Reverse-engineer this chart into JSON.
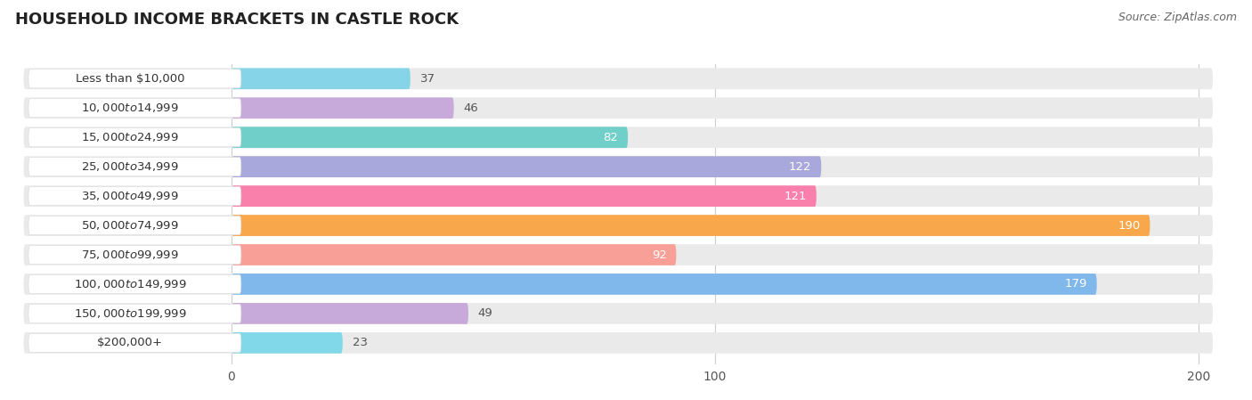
{
  "title": "HOUSEHOLD INCOME BRACKETS IN CASTLE ROCK",
  "source": "Source: ZipAtlas.com",
  "categories": [
    "Less than $10,000",
    "$10,000 to $14,999",
    "$15,000 to $24,999",
    "$25,000 to $34,999",
    "$35,000 to $49,999",
    "$50,000 to $74,999",
    "$75,000 to $99,999",
    "$100,000 to $149,999",
    "$150,000 to $199,999",
    "$200,000+"
  ],
  "values": [
    37,
    46,
    82,
    122,
    121,
    190,
    92,
    179,
    49,
    23
  ],
  "bar_colors": [
    "#85D4E8",
    "#C8AADA",
    "#70CFC8",
    "#A8A8DC",
    "#F880AA",
    "#F8A84A",
    "#F8A098",
    "#80B8EC",
    "#C8AADA",
    "#80D8E8"
  ],
  "bg_bar_color": "#EAEAEA",
  "label_pill_color": "#FFFFFF",
  "xlim_max": 200,
  "x_ticks": [
    0,
    100,
    200
  ],
  "title_fontsize": 13,
  "label_fontsize": 9.5,
  "value_fontsize": 9.5,
  "source_fontsize": 9
}
